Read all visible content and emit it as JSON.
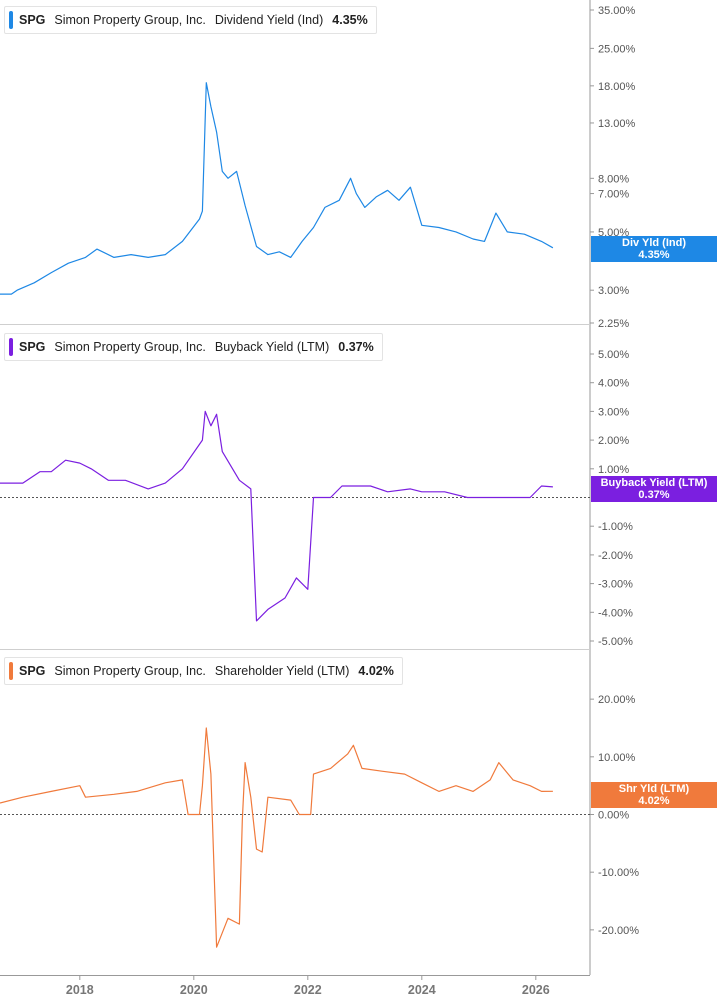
{
  "colors": {
    "div": "#1e88e5",
    "buyback": "#7b1fe0",
    "shareholder": "#f07a3c",
    "axis": "#555555"
  },
  "panels": [
    {
      "ticker": "SPG",
      "company": "Simon Property Group, Inc.",
      "metric": "Dividend Yield (Ind)",
      "value": "4.35%",
      "tag_line1": "Div Yld (Ind)",
      "tag_line2": "4.35%"
    },
    {
      "ticker": "SPG",
      "company": "Simon Property Group, Inc.",
      "metric": "Buyback Yield (LTM)",
      "value": "0.37%",
      "tag_line1": "Buyback Yield (LTM)",
      "tag_line2": "0.37%"
    },
    {
      "ticker": "SPG",
      "company": "Simon Property Group, Inc.",
      "metric": "Shareholder Yield (LTM)",
      "value": "4.02%",
      "tag_line1": "Shr Yld (LTM)",
      "tag_line2": "4.02%"
    }
  ],
  "chart_data": [
    {
      "type": "line",
      "series_name": "Dividend Yield (Ind)",
      "yscale": "log",
      "ylim": [
        2.25,
        35
      ],
      "y_ticks": [
        {
          "v": 35,
          "label": "35.00%"
        },
        {
          "v": 25,
          "label": "25.00%"
        },
        {
          "v": 18,
          "label": "18.00%"
        },
        {
          "v": 13,
          "label": "13.00%"
        },
        {
          "v": 8,
          "label": "8.00%"
        },
        {
          "v": 7,
          "label": "7.00%"
        },
        {
          "v": 5,
          "label": "5.00%"
        },
        {
          "v": 3,
          "label": "3.00%"
        },
        {
          "v": 2.25,
          "label": "2.25%"
        }
      ],
      "points": [
        [
          2016.6,
          2.9
        ],
        [
          2016.8,
          2.9
        ],
        [
          2016.9,
          3.0
        ],
        [
          2017.2,
          3.2
        ],
        [
          2017.5,
          3.5
        ],
        [
          2017.8,
          3.8
        ],
        [
          2018.1,
          4.0
        ],
        [
          2018.3,
          4.3
        ],
        [
          2018.6,
          4.0
        ],
        [
          2018.9,
          4.1
        ],
        [
          2019.2,
          4.0
        ],
        [
          2019.5,
          4.1
        ],
        [
          2019.8,
          4.6
        ],
        [
          2020.1,
          5.6
        ],
        [
          2020.15,
          6.0
        ],
        [
          2020.22,
          18.5
        ],
        [
          2020.3,
          15.0
        ],
        [
          2020.4,
          12.0
        ],
        [
          2020.5,
          8.5
        ],
        [
          2020.6,
          8.0
        ],
        [
          2020.75,
          8.5
        ],
        [
          2020.9,
          6.3
        ],
        [
          2021.1,
          4.4
        ],
        [
          2021.3,
          4.1
        ],
        [
          2021.5,
          4.2
        ],
        [
          2021.7,
          4.0
        ],
        [
          2021.9,
          4.6
        ],
        [
          2022.1,
          5.2
        ],
        [
          2022.3,
          6.2
        ],
        [
          2022.55,
          6.6
        ],
        [
          2022.75,
          8.0
        ],
        [
          2022.85,
          7.0
        ],
        [
          2023.0,
          6.2
        ],
        [
          2023.2,
          6.8
        ],
        [
          2023.4,
          7.2
        ],
        [
          2023.6,
          6.6
        ],
        [
          2023.8,
          7.4
        ],
        [
          2024.0,
          5.3
        ],
        [
          2024.3,
          5.2
        ],
        [
          2024.6,
          5.0
        ],
        [
          2024.9,
          4.7
        ],
        [
          2025.1,
          4.6
        ],
        [
          2025.3,
          5.9
        ],
        [
          2025.5,
          5.0
        ],
        [
          2025.8,
          4.9
        ],
        [
          2026.1,
          4.6
        ],
        [
          2026.3,
          4.35
        ]
      ]
    },
    {
      "type": "line",
      "series_name": "Buyback Yield (LTM)",
      "yscale": "linear",
      "ylim": [
        -5,
        5
      ],
      "y_ticks": [
        {
          "v": 5,
          "label": "5.00%"
        },
        {
          "v": 4,
          "label": "4.00%"
        },
        {
          "v": 3,
          "label": "3.00%"
        },
        {
          "v": 2,
          "label": "2.00%"
        },
        {
          "v": 1,
          "label": "1.00%"
        },
        {
          "v": -1,
          "label": "-1.00%"
        },
        {
          "v": -2,
          "label": "-2.00%"
        },
        {
          "v": -3,
          "label": "-3.00%"
        },
        {
          "v": -4,
          "label": "-4.00%"
        },
        {
          "v": -5,
          "label": "-5.00%"
        }
      ],
      "zero_line": 0,
      "points": [
        [
          2016.6,
          0.5
        ],
        [
          2017.0,
          0.5
        ],
        [
          2017.3,
          0.9
        ],
        [
          2017.5,
          0.9
        ],
        [
          2017.75,
          1.3
        ],
        [
          2018.0,
          1.2
        ],
        [
          2018.2,
          1.0
        ],
        [
          2018.5,
          0.6
        ],
        [
          2018.8,
          0.6
        ],
        [
          2019.2,
          0.3
        ],
        [
          2019.5,
          0.5
        ],
        [
          2019.8,
          1.0
        ],
        [
          2020.15,
          2.0
        ],
        [
          2020.2,
          3.0
        ],
        [
          2020.3,
          2.5
        ],
        [
          2020.4,
          2.9
        ],
        [
          2020.5,
          1.6
        ],
        [
          2020.8,
          0.6
        ],
        [
          2021.0,
          0.3
        ],
        [
          2021.1,
          -4.3
        ],
        [
          2021.3,
          -3.9
        ],
        [
          2021.6,
          -3.5
        ],
        [
          2021.8,
          -2.8
        ],
        [
          2022.0,
          -3.2
        ],
        [
          2022.1,
          0.0
        ],
        [
          2022.4,
          0.0
        ],
        [
          2022.6,
          0.4
        ],
        [
          2022.8,
          0.4
        ],
        [
          2023.1,
          0.4
        ],
        [
          2023.4,
          0.2
        ],
        [
          2023.8,
          0.3
        ],
        [
          2024.0,
          0.2
        ],
        [
          2024.4,
          0.2
        ],
        [
          2024.8,
          0.0
        ],
        [
          2025.3,
          0.0
        ],
        [
          2025.9,
          0.0
        ],
        [
          2026.1,
          0.4
        ],
        [
          2026.3,
          0.37
        ]
      ]
    },
    {
      "type": "line",
      "series_name": "Shareholder Yield (LTM)",
      "yscale": "linear",
      "ylim": [
        -28,
        28
      ],
      "y_ticks": [
        {
          "v": 20,
          "label": "20.00%"
        },
        {
          "v": 10,
          "label": "10.00%"
        },
        {
          "v": 0,
          "label": "0.00%"
        },
        {
          "v": -10,
          "label": "-10.00%"
        },
        {
          "v": -20,
          "label": "-20.00%"
        }
      ],
      "zero_line": 0,
      "points": [
        [
          2016.6,
          2.0
        ],
        [
          2017.0,
          3.0
        ],
        [
          2017.5,
          4.0
        ],
        [
          2018.0,
          5.0
        ],
        [
          2018.1,
          3.0
        ],
        [
          2018.6,
          3.5
        ],
        [
          2019.0,
          4.0
        ],
        [
          2019.5,
          5.5
        ],
        [
          2019.8,
          6.0
        ],
        [
          2019.9,
          0.0
        ],
        [
          2020.1,
          0.0
        ],
        [
          2020.15,
          5.0
        ],
        [
          2020.22,
          15.0
        ],
        [
          2020.3,
          7.0
        ],
        [
          2020.4,
          -23.0
        ],
        [
          2020.6,
          -18.0
        ],
        [
          2020.8,
          -19.0
        ],
        [
          2020.85,
          -1.0
        ],
        [
          2020.9,
          9.0
        ],
        [
          2021.0,
          3.0
        ],
        [
          2021.1,
          -6.0
        ],
        [
          2021.2,
          -6.5
        ],
        [
          2021.3,
          3.0
        ],
        [
          2021.7,
          2.5
        ],
        [
          2021.85,
          0.0
        ],
        [
          2022.05,
          0.0
        ],
        [
          2022.1,
          7.0
        ],
        [
          2022.4,
          8.0
        ],
        [
          2022.7,
          10.5
        ],
        [
          2022.8,
          12.0
        ],
        [
          2022.95,
          8.0
        ],
        [
          2023.3,
          7.5
        ],
        [
          2023.7,
          7.0
        ],
        [
          2024.0,
          5.5
        ],
        [
          2024.3,
          4.0
        ],
        [
          2024.6,
          5.0
        ],
        [
          2024.9,
          4.0
        ],
        [
          2025.2,
          6.0
        ],
        [
          2025.35,
          9.0
        ],
        [
          2025.6,
          6.0
        ],
        [
          2025.9,
          5.0
        ],
        [
          2026.1,
          4.0
        ],
        [
          2026.3,
          4.02
        ]
      ]
    }
  ],
  "x_axis": {
    "ticks": [
      {
        "v": 2018,
        "label": "2018"
      },
      {
        "v": 2020,
        "label": "2020"
      },
      {
        "v": 2022,
        "label": "2022"
      },
      {
        "v": 2024,
        "label": "2024"
      },
      {
        "v": 2026,
        "label": "2026"
      }
    ],
    "xlim": [
      2016.6,
      2026.6
    ]
  }
}
